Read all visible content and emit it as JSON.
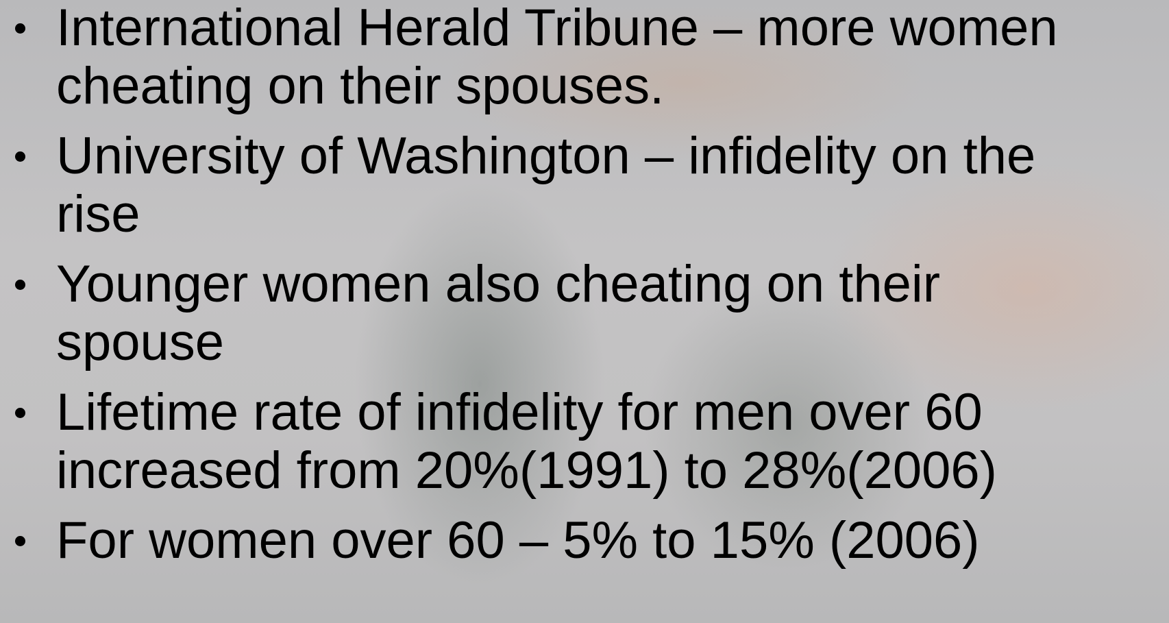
{
  "bullets": [
    "International Herald Tribune – more women cheating on their spouses.",
    "University of Washington – infidelity on the rise",
    "Younger women also cheating on their spouse",
    "Lifetime rate of infidelity for men over 60 increased from 20%(1991) to 28%(2006)",
    "For women over 60 – 5% to 15% (2006)"
  ]
}
